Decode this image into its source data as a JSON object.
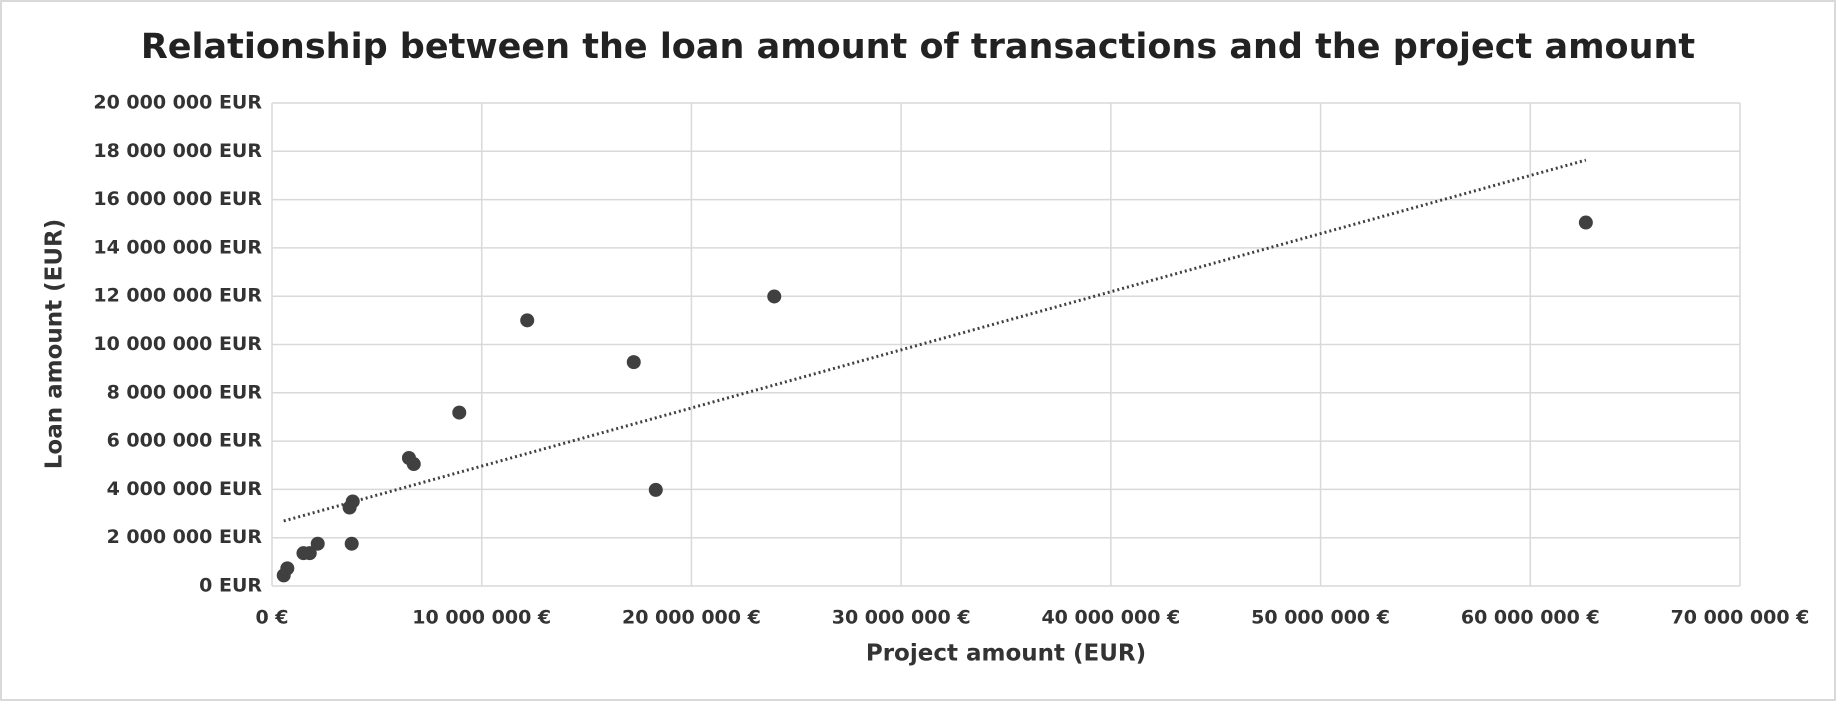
{
  "chart_data": {
    "type": "scatter",
    "title": "Relationship between the loan amount of transactions and the project amount",
    "xlabel": "Project amount (EUR)",
    "ylabel": "Loan amount (EUR)",
    "series": [
      {
        "color": "#404040",
        "x": [
          560000,
          730000,
          1500000,
          1800000,
          2180000,
          3700000,
          3850000,
          3800000,
          6530000,
          6760000,
          8930000,
          12170000,
          17250000,
          18300000,
          23950000,
          62650000
        ],
        "values": [
          440000,
          730000,
          1360000,
          1360000,
          1750000,
          3250000,
          3500000,
          1750000,
          5300000,
          5050000,
          7180000,
          11000000,
          9270000,
          3980000,
          11990000,
          15050000
        ]
      }
    ],
    "trendline": "linear",
    "trendline_color": "#404040",
    "xlim": [
      0,
      70000000
    ],
    "ylim": [
      0,
      20000000
    ],
    "xticks": [
      {
        "value": 0,
        "label": "0 €"
      },
      {
        "value": 10000000,
        "label": "10 000 000 €"
      },
      {
        "value": 20000000,
        "label": "20 000 000 €"
      },
      {
        "value": 30000000,
        "label": "30 000 000 €"
      },
      {
        "value": 40000000,
        "label": "40 000 000 €"
      },
      {
        "value": 50000000,
        "label": "50 000 000 €"
      },
      {
        "value": 60000000,
        "label": "60 000 000 €"
      },
      {
        "value": 70000000,
        "label": "70 000 000 €"
      }
    ],
    "yticks": [
      {
        "value": 0,
        "label": "0 EUR"
      },
      {
        "value": 2000000,
        "label": "2 000 000 EUR"
      },
      {
        "value": 4000000,
        "label": "4 000 000 EUR"
      },
      {
        "value": 6000000,
        "label": "6 000 000 EUR"
      },
      {
        "value": 8000000,
        "label": "8 000 000 EUR"
      },
      {
        "value": 10000000,
        "label": "10 000 000 EUR"
      },
      {
        "value": 12000000,
        "label": "12 000 000 EUR"
      },
      {
        "value": 14000000,
        "label": "14 000 000 EUR"
      },
      {
        "value": 16000000,
        "label": "16 000 000 EUR"
      },
      {
        "value": 18000000,
        "label": "18 000 000 EUR"
      },
      {
        "value": 20000000,
        "label": "20 000 000 EUR"
      }
    ],
    "grid": true
  }
}
